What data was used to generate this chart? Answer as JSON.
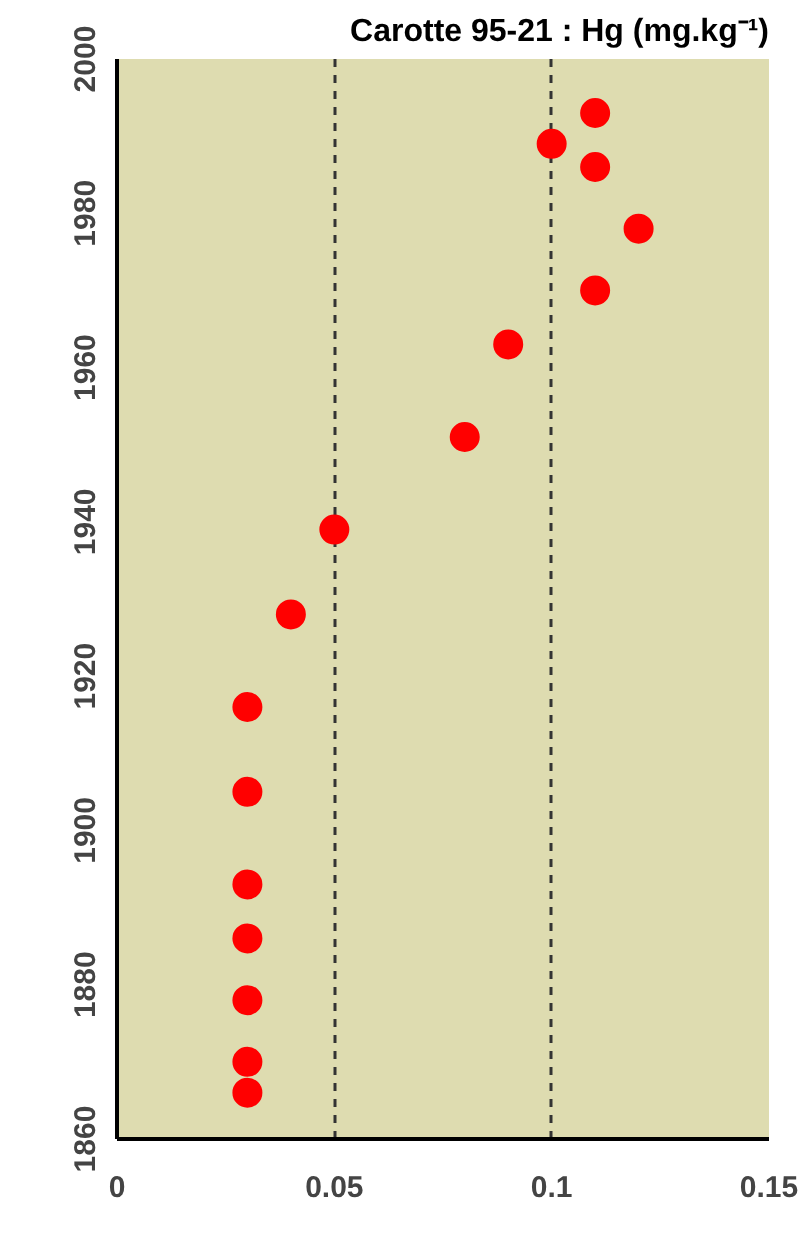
{
  "chart_data": {
    "type": "scatter",
    "title": "Carotte 95-21 : Hg (mg.kg⁻¹)",
    "x": [
      0.11,
      0.1,
      0.11,
      0.12,
      0.11,
      0.09,
      0.08,
      0.05,
      0.04,
      0.03,
      0.03,
      0.03,
      0.03,
      0.03,
      0.03,
      0.03
    ],
    "values": [
      1993,
      1989,
      1986,
      1978,
      1970,
      1963,
      1951,
      1939,
      1928,
      1916,
      1905,
      1893,
      1886,
      1878,
      1870,
      1866
    ],
    "color": "#ff0000",
    "marker": "circle",
    "xlim": [
      0,
      0.15
    ],
    "ylim": [
      1860,
      2000
    ],
    "xticks": [
      0,
      0.05,
      0.1,
      0.15
    ],
    "yticks": [
      1860,
      1880,
      1900,
      1920,
      1940,
      1960,
      1980,
      2000
    ],
    "grid": "x"
  }
}
